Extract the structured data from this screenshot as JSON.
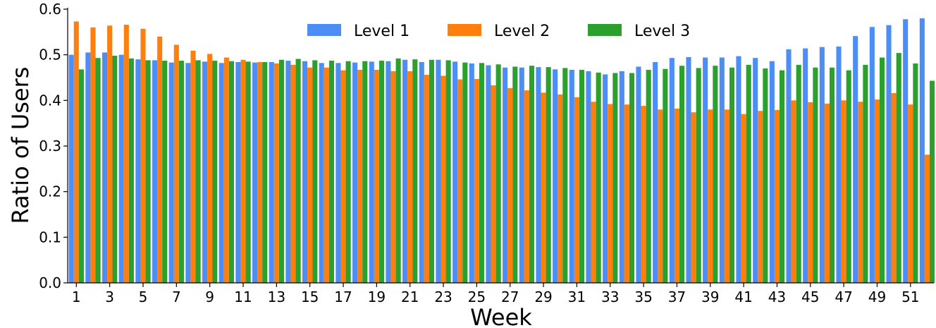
{
  "chart_data": {
    "type": "bar",
    "title": "",
    "xlabel": "Week",
    "ylabel": "Ratio of Users",
    "ylim": [
      0,
      0.6
    ],
    "yticks": [
      0.0,
      0.1,
      0.2,
      0.3,
      0.4,
      0.5,
      0.6
    ],
    "ytick_labels": [
      "0.0",
      "0.1",
      "0.2",
      "0.3",
      "0.4",
      "0.5",
      "0.6"
    ],
    "x": [
      1,
      2,
      3,
      4,
      5,
      6,
      7,
      8,
      9,
      10,
      11,
      12,
      13,
      14,
      15,
      16,
      17,
      18,
      19,
      20,
      21,
      22,
      23,
      24,
      25,
      26,
      27,
      28,
      29,
      30,
      31,
      32,
      33,
      34,
      35,
      36,
      37,
      38,
      39,
      40,
      41,
      42,
      43,
      44,
      45,
      46,
      47,
      48,
      49,
      50,
      51,
      52
    ],
    "xtick_labels": [
      "1",
      "3",
      "5",
      "7",
      "9",
      "11",
      "13",
      "15",
      "17",
      "19",
      "21",
      "23",
      "25",
      "27",
      "29",
      "31",
      "33",
      "35",
      "37",
      "39",
      "41",
      "43",
      "45",
      "47",
      "49",
      "51"
    ],
    "grid": false,
    "legend_position": "top-center",
    "series": [
      {
        "name": "Level 1",
        "color": "#4c8df6",
        "values": [
          0.5,
          0.505,
          0.505,
          0.5,
          0.49,
          0.488,
          0.483,
          0.482,
          0.485,
          0.482,
          0.484,
          0.483,
          0.484,
          0.487,
          0.486,
          0.482,
          0.482,
          0.483,
          0.485,
          0.486,
          0.489,
          0.484,
          0.489,
          0.485,
          0.481,
          0.477,
          0.472,
          0.472,
          0.473,
          0.468,
          0.467,
          0.464,
          0.457,
          0.464,
          0.474,
          0.484,
          0.493,
          0.495,
          0.494,
          0.494,
          0.497,
          0.493,
          0.486,
          0.512,
          0.514,
          0.517,
          0.518,
          0.541,
          0.561,
          0.565,
          0.578,
          0.58
        ]
      },
      {
        "name": "Level 2",
        "color": "#ff7f0e",
        "values": [
          0.573,
          0.56,
          0.564,
          0.566,
          0.557,
          0.54,
          0.522,
          0.509,
          0.502,
          0.494,
          0.489,
          0.484,
          0.481,
          0.478,
          0.472,
          0.472,
          0.466,
          0.467,
          0.467,
          0.464,
          0.464,
          0.456,
          0.454,
          0.446,
          0.447,
          0.433,
          0.427,
          0.422,
          0.417,
          0.413,
          0.407,
          0.397,
          0.392,
          0.391,
          0.388,
          0.38,
          0.382,
          0.374,
          0.38,
          0.38,
          0.37,
          0.377,
          0.379,
          0.4,
          0.396,
          0.393,
          0.4,
          0.397,
          0.402,
          0.416,
          0.391,
          0.281
        ]
      },
      {
        "name": "Level 3",
        "color": "#2ca02c",
        "values": [
          0.468,
          0.493,
          0.498,
          0.492,
          0.488,
          0.487,
          0.487,
          0.488,
          0.487,
          0.486,
          0.485,
          0.484,
          0.489,
          0.491,
          0.488,
          0.487,
          0.486,
          0.486,
          0.487,
          0.492,
          0.49,
          0.489,
          0.488,
          0.483,
          0.482,
          0.479,
          0.474,
          0.476,
          0.473,
          0.471,
          0.467,
          0.461,
          0.46,
          0.46,
          0.467,
          0.469,
          0.476,
          0.471,
          0.476,
          0.472,
          0.478,
          0.47,
          0.466,
          0.478,
          0.472,
          0.472,
          0.466,
          0.478,
          0.494,
          0.504,
          0.481,
          0.443
        ]
      }
    ]
  }
}
